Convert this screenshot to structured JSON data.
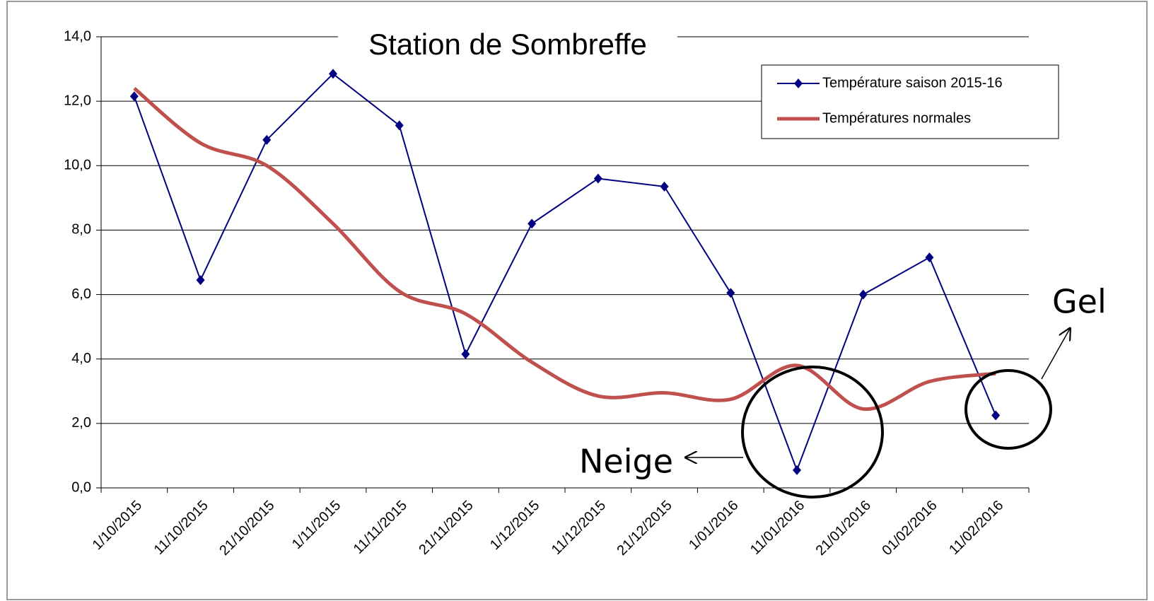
{
  "chart_data": {
    "type": "line",
    "title": "Station de Sombreffe",
    "categories": [
      "1/10/2015",
      "11/10/2015",
      "21/10/2015",
      "1/11/2015",
      "11/11/2015",
      "21/11/2015",
      "1/12/2015",
      "11/12/2015",
      "21/12/2015",
      "1/01/2016",
      "11/01/2016",
      "21/01/2016",
      "01/02/2016",
      "11/02/2016"
    ],
    "series": [
      {
        "name": "Température saison 2015-16",
        "color": "#000080",
        "marker": "diamond",
        "values": [
          12.15,
          6.45,
          10.8,
          12.85,
          11.25,
          4.15,
          8.2,
          9.6,
          9.35,
          6.05,
          0.55,
          6.0,
          7.15,
          2.25
        ]
      },
      {
        "name": "Températures normales",
        "color": "#c0504d",
        "smooth": true,
        "values": [
          12.4,
          10.7,
          10.0,
          8.2,
          6.1,
          5.4,
          3.9,
          2.85,
          2.95,
          2.75,
          3.8,
          2.45,
          3.3,
          3.55
        ]
      }
    ],
    "ylim": [
      0,
      14
    ],
    "yticks": [
      {
        "value": 0,
        "label": "0,0"
      },
      {
        "value": 2,
        "label": "2,0"
      },
      {
        "value": 4,
        "label": "4,0"
      },
      {
        "value": 6,
        "label": "6,0"
      },
      {
        "value": 8,
        "label": "8,0"
      },
      {
        "value": 10,
        "label": "10,0"
      },
      {
        "value": 12,
        "label": "12,0"
      },
      {
        "value": 14,
        "label": "14,0"
      }
    ],
    "grid": true,
    "legend": "upper right",
    "annotations": [
      "Neige",
      "Gel"
    ]
  }
}
